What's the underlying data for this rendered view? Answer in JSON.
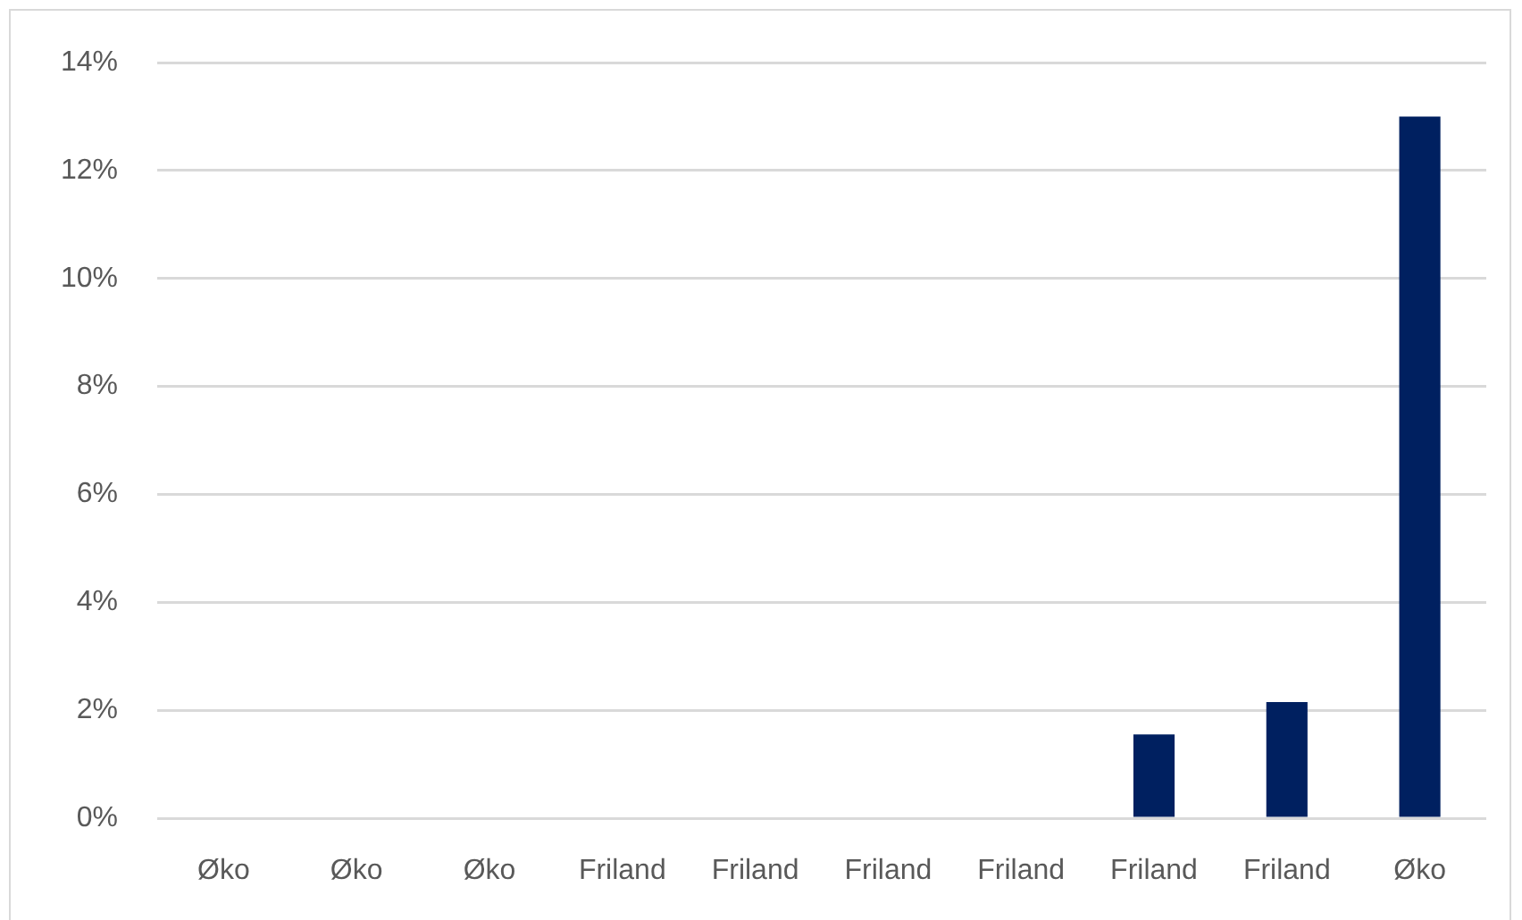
{
  "chart_data": {
    "type": "bar",
    "categories": [
      "Øko",
      "Øko",
      "Øko",
      "Friland",
      "Friland",
      "Friland",
      "Friland",
      "Friland",
      "Friland",
      "Øko"
    ],
    "values": [
      0,
      0,
      0,
      0,
      0,
      0,
      0,
      1.55,
      2.15,
      13
    ],
    "color": "#002060",
    "ylim": [
      0,
      14
    ],
    "yticks": [
      {
        "value": 0,
        "label": "0%"
      },
      {
        "value": 2,
        "label": "2%"
      },
      {
        "value": 4,
        "label": "4%"
      },
      {
        "value": 6,
        "label": "6%"
      },
      {
        "value": 8,
        "label": "8%"
      },
      {
        "value": 10,
        "label": "10%"
      },
      {
        "value": 12,
        "label": "12%"
      },
      {
        "value": 14,
        "label": "14%"
      }
    ],
    "grid": "y"
  }
}
